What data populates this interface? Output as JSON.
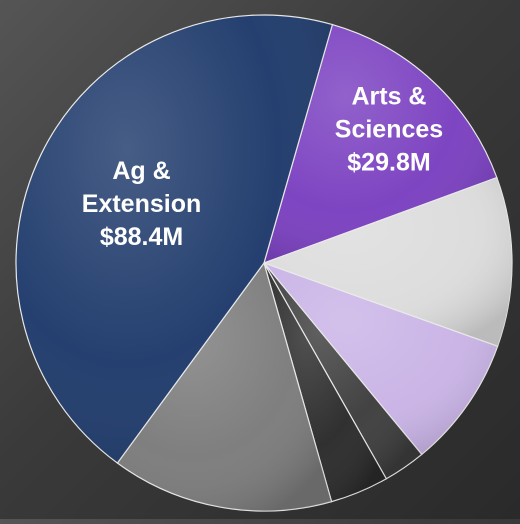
{
  "chart_data": {
    "type": "pie",
    "slices": [
      {
        "name_lines": [
          "Arts &",
          "Sciences",
          "$29.8M"
        ],
        "value": 29.8,
        "color": "#7a3fc0"
      },
      {
        "name_lines": [],
        "value": 22.0,
        "color": "#dcdcdc"
      },
      {
        "name_lines": [],
        "value": 17.1,
        "color": "#c9b3e6"
      },
      {
        "name_lines": [],
        "value": 5.5,
        "color": "#3d3d3d"
      },
      {
        "name_lines": [],
        "value": 7.6,
        "color": "#2a2a2a"
      },
      {
        "name_lines": [],
        "value": 28.8,
        "color": "#7b7b7b"
      },
      {
        "name_lines": [
          "Ag &",
          "Extension",
          "$88.4M"
        ],
        "value": 88.4,
        "color": "#1e3a6b"
      }
    ],
    "start_angle_deg": -74,
    "label_color": "#ffffff"
  }
}
